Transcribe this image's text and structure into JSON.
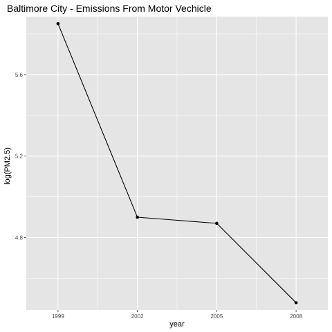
{
  "chart_data": {
    "type": "line",
    "title": "Baltimore City - Emissions From Motor Vechicle",
    "xlabel": "year",
    "ylabel": "log(PM2.5)",
    "x": [
      1999,
      2002,
      2005,
      2008
    ],
    "series": [
      {
        "values": [
          5.85,
          4.9,
          4.87,
          4.48
        ]
      }
    ],
    "xlim": [
      1997.8,
      2009.2
    ],
    "ylim": [
      4.445,
      5.885
    ],
    "xticks": [
      1999,
      2002,
      2005,
      2008
    ],
    "yticks": [
      4.8,
      5.2,
      5.6
    ],
    "ytick_labels": [
      "4.8",
      "5.2",
      "5.6"
    ],
    "grid": true,
    "colors": {
      "panel": "#e5e5e5",
      "grid_major": "#ffffff",
      "line": "#000000"
    }
  }
}
